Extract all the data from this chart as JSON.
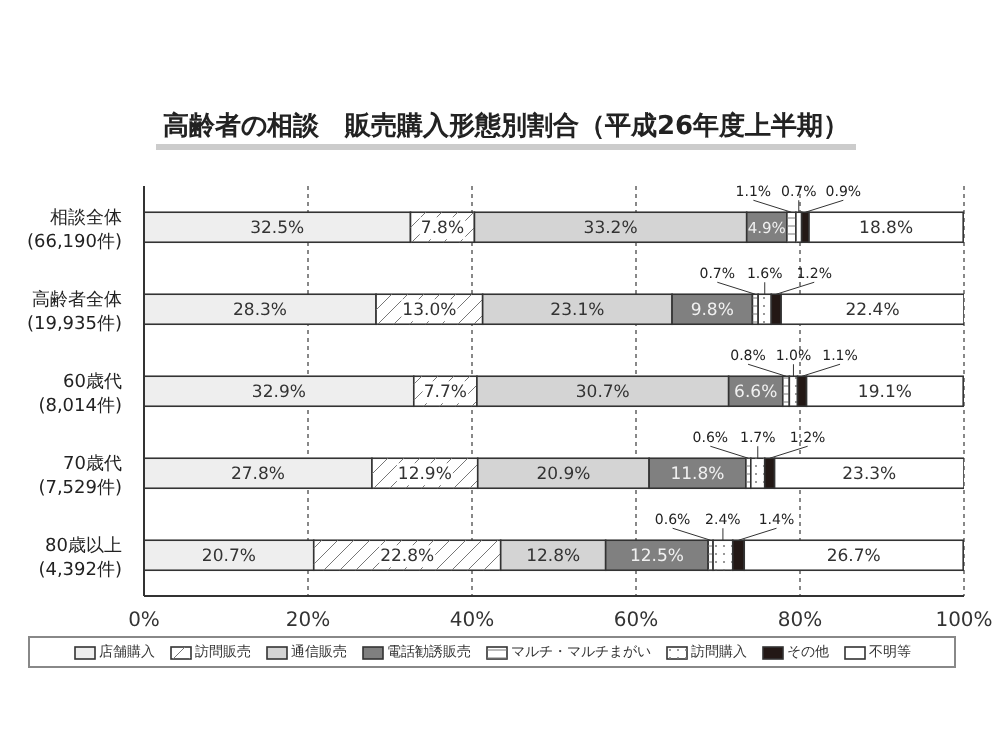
{
  "chart_data": {
    "type": "bar",
    "orientation": "horizontal",
    "stacked": true,
    "title": "高齢者の相談　販売購入形態別割合（平成26年度上半期）",
    "categories": [
      "相談全体\n(66,190件)",
      "高齢者全体\n(19,935件)",
      "60歳代\n(8,014件)",
      "70歳代\n(7,529件)",
      "80歳以上\n(4,392件)"
    ],
    "series": [
      {
        "name": "店舗購入",
        "color": "#eeeeee",
        "values": [
          32.5,
          28.3,
          32.9,
          27.8,
          20.7
        ],
        "value_labels": [
          "32.5%",
          "28.3%",
          "32.9%",
          "27.8%",
          "20.7%"
        ]
      },
      {
        "name": "訪問販売",
        "color": "#ffffff",
        "values": [
          7.8,
          13.0,
          7.7,
          12.9,
          22.8
        ],
        "value_labels": [
          "7.8%",
          "13.0%",
          "7.7%",
          "12.9%",
          "22.8%"
        ]
      },
      {
        "name": "通信販売",
        "color": "#d4d4d4",
        "values": [
          33.2,
          23.1,
          30.7,
          20.9,
          12.8
        ],
        "value_labels": [
          "33.2%",
          "23.1%",
          "30.7%",
          "20.9%",
          "12.8%"
        ]
      },
      {
        "name": "電話勧誘販売",
        "color": "#808080",
        "values": [
          4.9,
          9.8,
          6.6,
          11.8,
          12.5
        ],
        "value_labels": [
          "4.9%",
          "9.8%",
          "6.6%",
          "11.8%",
          "12.5%"
        ]
      },
      {
        "name": "マルチ・マルチまがい",
        "color": "#ffffff",
        "values": [
          1.1,
          0.7,
          0.8,
          0.6,
          0.6
        ],
        "value_labels": [
          "1.1%",
          "0.7%",
          "0.8%",
          "0.6%",
          "0.6%"
        ]
      },
      {
        "name": "訪問購入",
        "color": "#ffffff",
        "values": [
          0.7,
          1.6,
          1.0,
          1.7,
          2.4
        ],
        "value_labels": [
          "0.7%",
          "1.6%",
          "1.0%",
          "1.7%",
          "2.4%"
        ]
      },
      {
        "name": "その他",
        "color": "#231815",
        "values": [
          0.9,
          1.2,
          1.1,
          1.2,
          1.4
        ],
        "value_labels": [
          "0.9%",
          "1.2%",
          "1.1%",
          "1.2%",
          "1.4%"
        ]
      },
      {
        "name": "不明等",
        "color": "#ffffff",
        "values": [
          18.8,
          22.4,
          19.1,
          23.3,
          26.7
        ],
        "value_labels": [
          "18.8%",
          "22.4%",
          "19.1%",
          "23.3%",
          "26.7%"
        ]
      }
    ],
    "xlim": [
      0,
      100
    ],
    "xticks": [
      {
        "value": 0,
        "label": "0%"
      },
      {
        "value": 20,
        "label": "20%"
      },
      {
        "value": 40,
        "label": "40%"
      },
      {
        "value": 60,
        "label": "60%"
      },
      {
        "value": 80,
        "label": "80%"
      },
      {
        "value": 100,
        "label": "100%"
      }
    ],
    "grid": "x",
    "legend": "bottom"
  }
}
